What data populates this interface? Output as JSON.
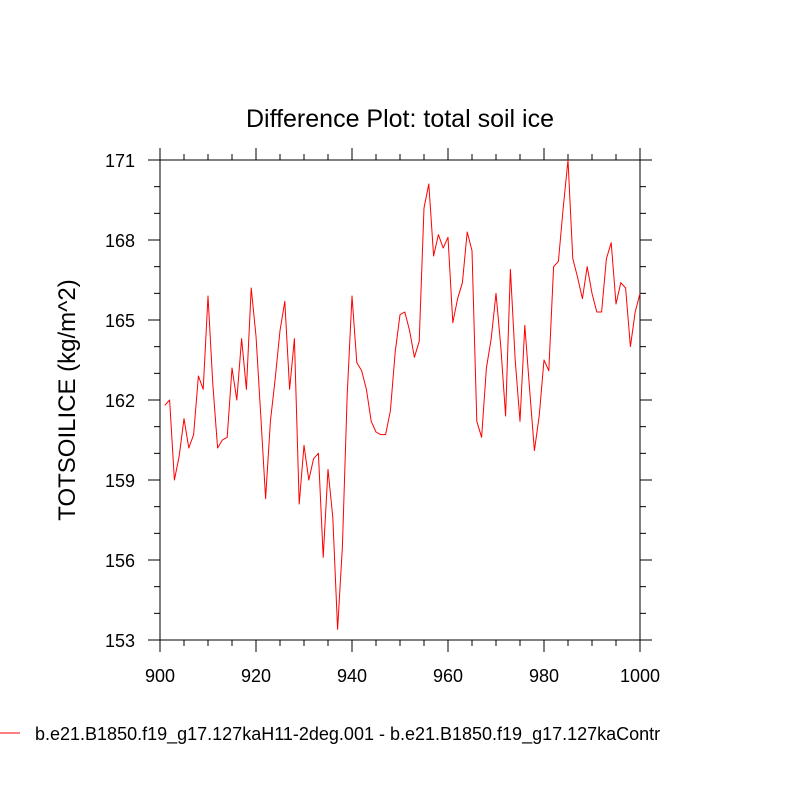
{
  "chart_data": {
    "type": "line",
    "title": "Difference Plot: total soil ice",
    "xlabel": "",
    "ylabel": "TOTSOILICE  (kg/m^2)",
    "xlim": [
      900,
      1000
    ],
    "ylim": [
      153,
      171
    ],
    "x_ticks": [
      900,
      920,
      940,
      960,
      980,
      1000
    ],
    "x_tick_labels": [
      "900",
      "920",
      "940",
      "960",
      "980",
      "1000"
    ],
    "y_ticks": [
      153,
      156,
      159,
      162,
      165,
      168,
      171
    ],
    "y_tick_labels": [
      "153",
      "156",
      "159",
      "162",
      "165",
      "168",
      "171"
    ],
    "grid": false,
    "legend_position": "bottom",
    "series": [
      {
        "name": "b.e21.B1850.f19_g17.127kaH11-2deg.001 - b.e21.B1850.f19_g17.127kaContr",
        "color": "#ff0000",
        "x": [
          901,
          902,
          903,
          904,
          905,
          906,
          907,
          908,
          909,
          910,
          911,
          912,
          913,
          914,
          915,
          916,
          917,
          918,
          919,
          920,
          921,
          922,
          923,
          924,
          925,
          926,
          927,
          928,
          929,
          930,
          931,
          932,
          933,
          934,
          935,
          936,
          937,
          938,
          939,
          940,
          941,
          942,
          943,
          944,
          945,
          946,
          947,
          948,
          949,
          950,
          951,
          952,
          953,
          954,
          955,
          956,
          957,
          958,
          959,
          960,
          961,
          962,
          963,
          964,
          965,
          966,
          967,
          968,
          969,
          970,
          971,
          972,
          973,
          974,
          975,
          976,
          977,
          978,
          979,
          980,
          981,
          982,
          983,
          984,
          985,
          986,
          987,
          988,
          989,
          990,
          991,
          992,
          993,
          994,
          995,
          996,
          997,
          998,
          999,
          1000
        ],
        "values": [
          161.8,
          162.0,
          159.0,
          159.9,
          161.3,
          160.2,
          160.7,
          162.9,
          162.4,
          165.9,
          162.6,
          160.2,
          160.5,
          160.6,
          163.2,
          162.0,
          164.3,
          162.4,
          166.2,
          164.4,
          161.4,
          158.3,
          161.2,
          162.8,
          164.6,
          165.7,
          162.4,
          164.3,
          158.1,
          160.3,
          159.0,
          159.8,
          160.0,
          156.1,
          159.4,
          157.6,
          153.4,
          156.5,
          162.2,
          165.9,
          163.4,
          163.1,
          162.4,
          161.2,
          160.8,
          160.7,
          160.7,
          161.6,
          163.8,
          165.2,
          165.3,
          164.6,
          163.6,
          164.2,
          169.2,
          170.1,
          167.4,
          168.2,
          167.7,
          168.1,
          164.9,
          165.8,
          166.4,
          168.3,
          167.6,
          161.2,
          160.6,
          163.2,
          164.3,
          166.0,
          164.0,
          161.4,
          166.9,
          163.5,
          161.2,
          164.8,
          162.4,
          160.1,
          161.4,
          163.5,
          163.1,
          167.0,
          167.2,
          169.2,
          171.0,
          167.3,
          166.6,
          165.8,
          167.0,
          166.0,
          165.3,
          165.3,
          167.3,
          167.9,
          165.6,
          166.4,
          166.2,
          164.0,
          165.3,
          166.0
        ]
      }
    ]
  }
}
